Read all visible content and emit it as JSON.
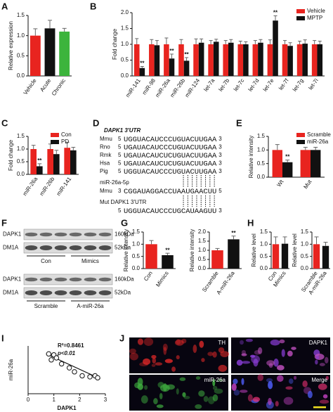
{
  "panel_labels": [
    "A",
    "B",
    "C",
    "D",
    "E",
    "F",
    "G",
    "H",
    "I",
    "J"
  ],
  "chart_data": [
    {
      "type": "bar",
      "ylabel": "Relative expression",
      "categories": [
        "Vehicle",
        "Acute",
        "Chronic"
      ],
      "values": [
        1.0,
        1.18,
        1.1
      ],
      "errors": [
        0.17,
        0.2,
        0.08
      ],
      "colors": [
        "#e8241f",
        "#111111",
        "#3cb43c"
      ],
      "ylim": [
        0,
        1.5
      ],
      "yticks": [
        {
          "value": 0,
          "label": "0.0"
        },
        {
          "value": 0.5,
          "label": "0.5"
        },
        {
          "value": 1,
          "label": "1.0"
        },
        {
          "value": 1.5,
          "label": "1.5"
        }
      ]
    },
    {
      "type": "bar",
      "ylabel": "Fold change",
      "categories": [
        "miR-141",
        "miR-98",
        "miR-26a",
        "miR-26b",
        "miR-124",
        "let-7a",
        "let-7b",
        "let-7c",
        "let-7d",
        "let-7e",
        "let-7f",
        "let-7g",
        "let-7i"
      ],
      "series": [
        {
          "name": "Vehicle",
          "color": "#e8241f",
          "values": [
            1.0,
            1.0,
            1.0,
            1.0,
            1.0,
            1.0,
            1.0,
            1.0,
            1.0,
            1.0,
            1.0,
            1.0,
            1.0
          ],
          "errors": [
            0.18,
            0.15,
            0.2,
            0.15,
            0.17,
            0.12,
            0.12,
            0.1,
            0.12,
            0.14,
            0.12,
            0.1,
            0.12
          ]
        },
        {
          "name": "MPTP",
          "color": "#111111",
          "values": [
            0.25,
            0.97,
            0.55,
            0.48,
            1.05,
            1.08,
            1.05,
            1.0,
            1.05,
            1.75,
            0.95,
            1.02,
            1.0
          ],
          "errors": [
            0.05,
            0.15,
            0.14,
            0.1,
            0.12,
            0.08,
            0.1,
            0.08,
            0.1,
            0.15,
            0.1,
            0.12,
            0.1
          ],
          "significance": [
            "**",
            null,
            "**",
            "**",
            null,
            null,
            null,
            null,
            null,
            "**",
            null,
            null,
            null
          ]
        }
      ],
      "ylim": [
        0,
        2
      ],
      "yticks": [
        {
          "value": 0,
          "label": "0.0"
        },
        {
          "value": 0.5,
          "label": "0.5"
        },
        {
          "value": 1,
          "label": "1.0"
        },
        {
          "value": 1.5,
          "label": "1.5"
        },
        {
          "value": 2,
          "label": "2.0"
        }
      ],
      "legend": "upper right"
    },
    {
      "type": "bar",
      "ylabel": "Fold change",
      "categories": [
        "miR-26a",
        "miR-26b",
        "miR-141"
      ],
      "series": [
        {
          "name": "Con",
          "color": "#e8241f",
          "values": [
            1.0,
            1.0,
            1.05
          ],
          "errors": [
            0.15,
            0.2,
            0.22
          ]
        },
        {
          "name": "PD",
          "color": "#111111",
          "values": [
            0.32,
            0.8,
            0.95
          ],
          "errors": [
            0.1,
            0.15,
            0.12
          ],
          "significance": [
            "**",
            null,
            null
          ]
        }
      ],
      "ylim": [
        0,
        1.5
      ],
      "yticks": [
        {
          "value": 0,
          "label": "0.0"
        },
        {
          "value": 0.5,
          "label": "0.5"
        },
        {
          "value": 1,
          "label": "1.0"
        },
        {
          "value": 1.5,
          "label": "1.5"
        }
      ],
      "legend": "upper right"
    },
    {
      "type": "bar",
      "ylabel": "Relative intensity",
      "categories": [
        "Wt",
        "Mut"
      ],
      "series": [
        {
          "name": "Scramble",
          "color": "#e8241f",
          "values": [
            1.0,
            1.0
          ],
          "errors": [
            0.2,
            0.1
          ]
        },
        {
          "name": "miR-26a",
          "color": "#111111",
          "values": [
            0.55,
            1.0
          ],
          "errors": [
            0.08,
            0.1
          ],
          "significance": [
            "**",
            null
          ]
        }
      ],
      "ylim": [
        0,
        1.5
      ],
      "yticks": [
        {
          "value": 0,
          "label": "0.0"
        },
        {
          "value": 0.5,
          "label": "0.5"
        },
        {
          "value": 1,
          "label": "1.0"
        },
        {
          "value": 1.5,
          "label": "1.5"
        }
      ],
      "legend": "upper right"
    },
    {
      "type": "bar",
      "ylabel": "Relative intensity",
      "categories": [
        "Con",
        "Mimics"
      ],
      "values": [
        1.0,
        0.55
      ],
      "errors": [
        0.15,
        0.08
      ],
      "colors": [
        "#e8241f",
        "#111111"
      ],
      "significance": [
        null,
        "**"
      ],
      "ylim": [
        0,
        1.5
      ],
      "yticks": [
        {
          "value": 0,
          "label": "0.0"
        },
        {
          "value": 0.5,
          "label": "0.5"
        },
        {
          "value": 1,
          "label": "1.0"
        },
        {
          "value": 1.5,
          "label": "1.5"
        }
      ]
    },
    {
      "type": "bar",
      "ylabel": "Relative intensity",
      "categories": [
        "Scramble",
        "A-miR-26a"
      ],
      "values": [
        1.0,
        1.6
      ],
      "errors": [
        0.1,
        0.18
      ],
      "colors": [
        "#e8241f",
        "#111111"
      ],
      "significance": [
        null,
        "**"
      ],
      "ylim": [
        0,
        2
      ],
      "yticks": [
        {
          "value": 0,
          "label": "0.0"
        },
        {
          "value": 0.5,
          "label": "0.5"
        },
        {
          "value": 1,
          "label": "1.0"
        },
        {
          "value": 1.5,
          "label": "1.5"
        },
        {
          "value": 2,
          "label": "2.0"
        }
      ]
    },
    {
      "type": "bar",
      "ylabel": "Relative level",
      "categories": [
        "Con",
        "Mimics"
      ],
      "values": [
        1.0,
        1.02
      ],
      "errors": [
        0.3,
        0.28
      ],
      "colors": [
        "#e8241f",
        "#111111"
      ],
      "ylim": [
        0,
        1.5
      ],
      "yticks": [
        {
          "value": 0,
          "label": "0.0"
        },
        {
          "value": 0.5,
          "label": "0.5"
        },
        {
          "value": 1,
          "label": "1.0"
        },
        {
          "value": 1.5,
          "label": "1.5"
        }
      ]
    },
    {
      "type": "bar",
      "ylabel": "Relative level",
      "categories": [
        "Scramble",
        "A-miR-26a"
      ],
      "values": [
        1.0,
        0.93
      ],
      "errors": [
        0.3,
        0.15
      ],
      "colors": [
        "#e8241f",
        "#111111"
      ],
      "ylim": [
        0,
        1.5
      ],
      "yticks": [
        {
          "value": 0,
          "label": "0.0"
        },
        {
          "value": 0.5,
          "label": "0.5"
        },
        {
          "value": 1,
          "label": "1.0"
        },
        {
          "value": 1.5,
          "label": "1.5"
        }
      ]
    },
    {
      "type": "scatter",
      "xlabel": "DAPK1",
      "ylabel": "miR-26a",
      "annotations": [
        "R²=0.8461",
        "p<0.01"
      ],
      "x": [
        0.8,
        1.0,
        1.1,
        0.9,
        1.3,
        1.6,
        1.8,
        2.1,
        2.4,
        2.6,
        2.7
      ],
      "values": [
        2.0,
        1.95,
        1.8,
        1.7,
        1.5,
        1.3,
        1.1,
        0.9,
        0.85,
        0.9,
        0.8
      ],
      "fit": {
        "x": [
          0.7,
          2.8
        ],
        "y": [
          2.0,
          0.75
        ]
      },
      "xlim": [
        0,
        3
      ],
      "xticks": [
        0,
        1,
        2,
        3
      ],
      "ylim": [
        0,
        2.4
      ]
    }
  ],
  "sequence_panel": {
    "title": "DAPK1 3'UTR",
    "rows": [
      {
        "species": "Mmu",
        "left": "5",
        "seq": "UGGUACAUCCCUG",
        "site": "UACUUGAA",
        "right": "3"
      },
      {
        "species": "Rno",
        "left": "5",
        "seq": "UGAUACAUCCCUG",
        "site": "UACUUGAA",
        "right": "3"
      },
      {
        "species": "Rmk",
        "left": "5",
        "seq": "UGAUACAUCUCUG",
        "site": "UACUUGAA",
        "right": "3"
      },
      {
        "species": "Hsa",
        "left": "5",
        "seq": "UGAUACAUCUCUG",
        "site": "UACUUGAA",
        "right": "3"
      },
      {
        "species": "Pig",
        "left": "5",
        "seq": "UGGUACAUCCCUG",
        "site": "UACUUGAA",
        "right": "3"
      }
    ],
    "mirna_label": "miR-26a-5p",
    "mirna": {
      "species": "Mmu",
      "left": "3",
      "seq": "CGGAUAGGACCUA",
      "site": "AUGAACUU",
      "right": "5"
    },
    "mut_label": "Mut DAPK1 3'UTR",
    "mut": {
      "left": "5",
      "seq": "UGGUACAUCCCUG",
      "site": "CAUAAGUU",
      "right": "3"
    }
  },
  "blots": [
    {
      "rows": [
        "DAPK1",
        "DM1A"
      ],
      "sizes": [
        "160kDa",
        "52kDa"
      ],
      "lanes": [
        "Con",
        "Mimics"
      ]
    },
    {
      "rows": [
        "DAPK1",
        "DM1A"
      ],
      "sizes": [
        "160kDa",
        "52kDa"
      ],
      "lanes": [
        "Scramble",
        "A-miR-26a"
      ]
    }
  ],
  "micrographs": [
    "TH",
    "DAPK1",
    "miR-26a",
    "Merge"
  ]
}
